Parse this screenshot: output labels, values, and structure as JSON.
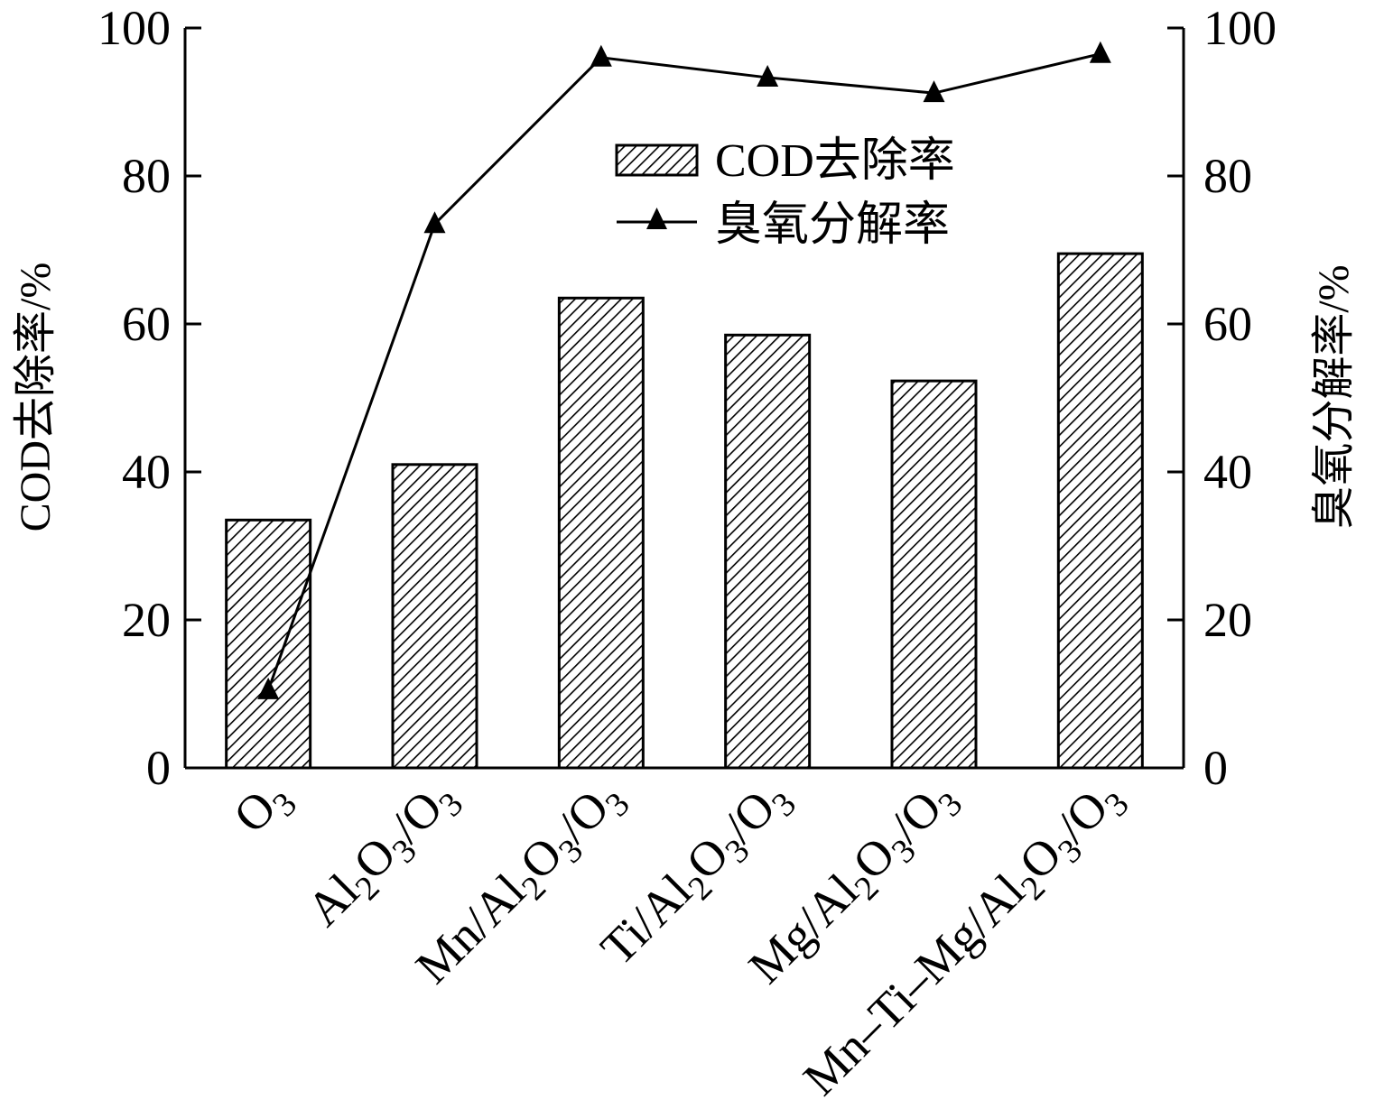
{
  "chart_data": {
    "type": "bar",
    "categories": [
      {
        "base": "O",
        "parts": [
          [
            "O",
            "n"
          ],
          [
            "3",
            "sub"
          ]
        ]
      },
      {
        "base": "Al2O3/O3",
        "parts": [
          [
            "Al",
            "n"
          ],
          [
            "2",
            "sub"
          ],
          [
            "O",
            "n"
          ],
          [
            "3",
            "sub"
          ],
          [
            "/O",
            "n"
          ],
          [
            "3",
            "sub"
          ]
        ]
      },
      {
        "base": "Mn/Al2O3/O3",
        "parts": [
          [
            "Mn/Al",
            "n"
          ],
          [
            "2",
            "sub"
          ],
          [
            "O",
            "n"
          ],
          [
            "3",
            "sub"
          ],
          [
            "/O",
            "n"
          ],
          [
            "3",
            "sub"
          ]
        ]
      },
      {
        "base": "Ti/Al2O3/O3",
        "parts": [
          [
            "Ti/Al",
            "n"
          ],
          [
            "2",
            "sub"
          ],
          [
            "O",
            "n"
          ],
          [
            "3",
            "sub"
          ],
          [
            "/O",
            "n"
          ],
          [
            "3",
            "sub"
          ]
        ]
      },
      {
        "base": "Mg/Al2O3/O3",
        "parts": [
          [
            "Mg/Al",
            "n"
          ],
          [
            "2",
            "sub"
          ],
          [
            "O",
            "n"
          ],
          [
            "3",
            "sub"
          ],
          [
            "/O",
            "n"
          ],
          [
            "3",
            "sub"
          ]
        ]
      },
      {
        "base": "Mn–Ti–Mg/Al2O3/O3",
        "parts": [
          [
            "Mn–Ti–Mg/Al",
            "n"
          ],
          [
            "2",
            "sub"
          ],
          [
            "O",
            "n"
          ],
          [
            "3",
            "sub"
          ],
          [
            "/O",
            "n"
          ],
          [
            "3",
            "sub"
          ]
        ]
      }
    ],
    "series": [
      {
        "name": "COD去除率",
        "kind": "bar",
        "axis": "left",
        "values": [
          33.5,
          41,
          63.5,
          58.5,
          52.3,
          69.5
        ]
      },
      {
        "name": "臭氧分解率",
        "kind": "line",
        "axis": "right",
        "marker": "triangle",
        "values": [
          10.5,
          73.5,
          96,
          93.3,
          91.2,
          96.5
        ]
      }
    ],
    "ylabel": "COD去除率/%",
    "y2label": "臭氧分解率/%",
    "ylim": [
      0,
      100
    ],
    "y2lim": [
      0,
      100
    ],
    "yticks": [
      0,
      20,
      40,
      60,
      80,
      100
    ],
    "y2ticks": [
      0,
      20,
      40,
      60,
      80,
      100
    ],
    "grid": false,
    "legend_position": "top-right"
  }
}
